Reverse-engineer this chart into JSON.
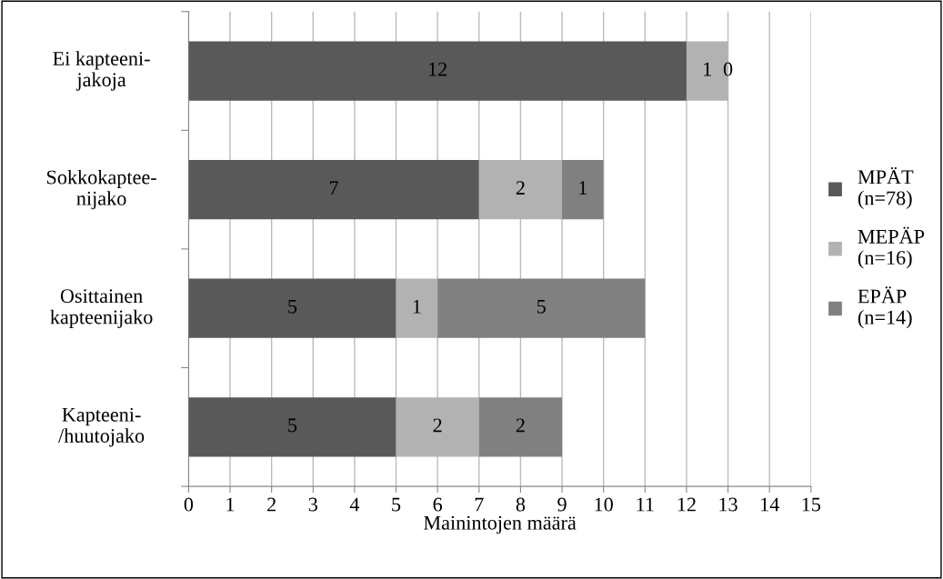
{
  "chart_data": {
    "type": "bar",
    "orientation": "horizontal",
    "stacked": true,
    "categories": [
      "Ei kapteeni-\njakoja",
      "Sokkokaptee-\nnijako",
      "Osittainen\nkapteenijako",
      "Kapteeni-\n/huutojako"
    ],
    "series": [
      {
        "name": "MPÄT\n(n=78)",
        "color": "#595959",
        "values": [
          12,
          7,
          5,
          5
        ]
      },
      {
        "name": "MEPÄP\n(n=16)",
        "color": "#b2b2b2",
        "values": [
          1,
          2,
          1,
          2
        ]
      },
      {
        "name": "EPÄP\n(n=14)",
        "color": "#808080",
        "values": [
          0,
          1,
          5,
          2
        ]
      }
    ],
    "xlabel": "Mainintojen määrä",
    "xlim": [
      0,
      15
    ],
    "xticks": [
      0,
      1,
      2,
      3,
      4,
      5,
      6,
      7,
      8,
      9,
      10,
      11,
      12,
      13,
      14,
      15
    ],
    "grid": "x",
    "legend": "right",
    "data_labels": true
  }
}
